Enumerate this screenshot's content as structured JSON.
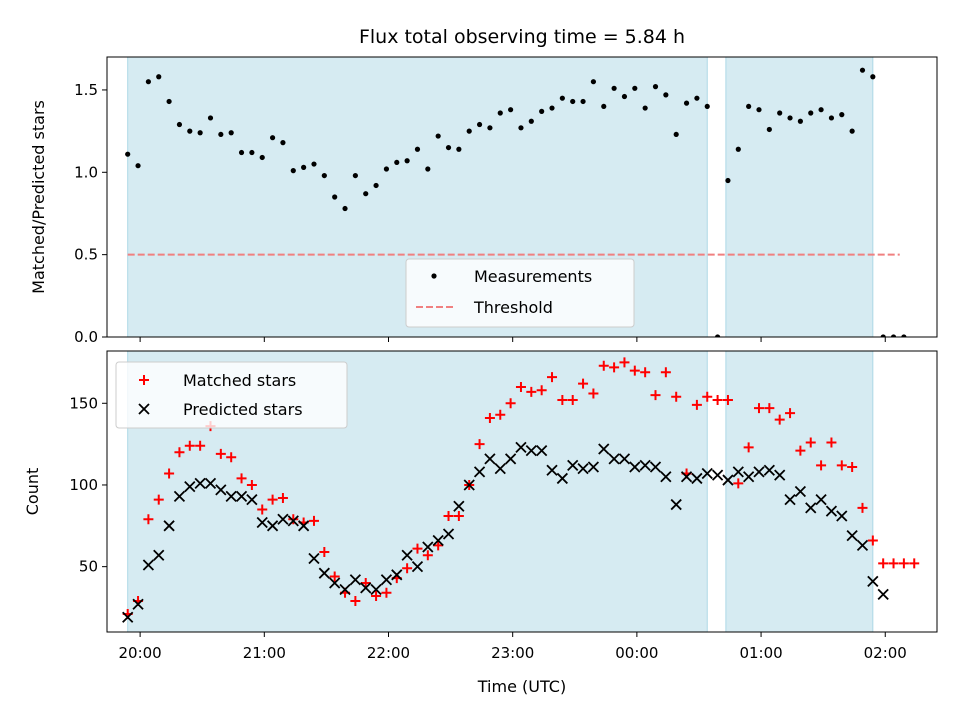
{
  "chart_data": [
    {
      "type": "scatter",
      "title": "Flux total observing time = 5.84 h",
      "ylabel": "Matched/Predicted stars",
      "xlabel": "",
      "ylim": [
        0,
        1.7
      ],
      "xlim": [
        "19:44",
        "02:25"
      ],
      "yticks": [
        "0.0",
        "0.5",
        "1.0",
        "1.5"
      ],
      "shaded_intervals": [
        [
          "19:54",
          "00:34"
        ],
        [
          "00:43",
          "01:54"
        ]
      ],
      "legend": {
        "placement": "lower-center",
        "entries": [
          "Measurements",
          "Threshold"
        ]
      },
      "threshold": {
        "name": "Threshold",
        "value": 0.5,
        "x_range": [
          "19:54",
          "02:07"
        ],
        "color": "#f08080"
      },
      "series": [
        {
          "name": "Measurements",
          "color": "#000000",
          "points": [
            [
              "19:54",
              1.11
            ],
            [
              "19:59",
              1.04
            ],
            [
              "20:04",
              1.55
            ],
            [
              "20:09",
              1.58
            ],
            [
              "20:14",
              1.43
            ],
            [
              "20:19",
              1.29
            ],
            [
              "20:24",
              1.25
            ],
            [
              "20:29",
              1.24
            ],
            [
              "20:34",
              1.33
            ],
            [
              "20:39",
              1.23
            ],
            [
              "20:44",
              1.24
            ],
            [
              "20:49",
              1.12
            ],
            [
              "20:54",
              1.12
            ],
            [
              "20:59",
              1.09
            ],
            [
              "21:04",
              1.21
            ],
            [
              "21:09",
              1.18
            ],
            [
              "21:14",
              1.01
            ],
            [
              "21:19",
              1.03
            ],
            [
              "21:24",
              1.05
            ],
            [
              "21:29",
              0.98
            ],
            [
              "21:34",
              0.85
            ],
            [
              "21:39",
              0.78
            ],
            [
              "21:44",
              0.98
            ],
            [
              "21:49",
              0.87
            ],
            [
              "21:54",
              0.92
            ],
            [
              "21:59",
              1.02
            ],
            [
              "22:04",
              1.06
            ],
            [
              "22:09",
              1.07
            ],
            [
              "22:14",
              1.14
            ],
            [
              "22:19",
              1.02
            ],
            [
              "22:24",
              1.22
            ],
            [
              "22:29",
              1.15
            ],
            [
              "22:34",
              1.14
            ],
            [
              "22:39",
              1.25
            ],
            [
              "22:44",
              1.29
            ],
            [
              "22:49",
              1.27
            ],
            [
              "22:54",
              1.36
            ],
            [
              "22:59",
              1.38
            ],
            [
              "23:04",
              1.27
            ],
            [
              "23:09",
              1.31
            ],
            [
              "23:14",
              1.37
            ],
            [
              "23:19",
              1.39
            ],
            [
              "23:24",
              1.45
            ],
            [
              "23:29",
              1.43
            ],
            [
              "23:34",
              1.43
            ],
            [
              "23:39",
              1.55
            ],
            [
              "23:44",
              1.4
            ],
            [
              "23:49",
              1.51
            ],
            [
              "23:54",
              1.46
            ],
            [
              "23:59",
              1.51
            ],
            [
              "00:04",
              1.39
            ],
            [
              "00:09",
              1.52
            ],
            [
              "00:14",
              1.47
            ],
            [
              "00:19",
              1.23
            ],
            [
              "00:24",
              1.42
            ],
            [
              "00:29",
              1.45
            ],
            [
              "00:34",
              1.4
            ],
            [
              "00:39",
              0.0
            ],
            [
              "00:44",
              0.95
            ],
            [
              "00:49",
              1.14
            ],
            [
              "00:54",
              1.4
            ],
            [
              "00:59",
              1.38
            ],
            [
              "01:04",
              1.26
            ],
            [
              "01:09",
              1.36
            ],
            [
              "01:14",
              1.33
            ],
            [
              "01:19",
              1.31
            ],
            [
              "01:24",
              1.36
            ],
            [
              "01:29",
              1.38
            ],
            [
              "01:34",
              1.33
            ],
            [
              "01:39",
              1.35
            ],
            [
              "01:44",
              1.25
            ],
            [
              "01:49",
              1.62
            ],
            [
              "01:54",
              1.58
            ],
            [
              "01:59",
              0.0
            ],
            [
              "02:04",
              0.0
            ],
            [
              "02:09",
              0.0
            ]
          ]
        }
      ]
    },
    {
      "type": "scatter",
      "title": "",
      "xlabel": "Time (UTC)",
      "ylabel": "Count",
      "ylim": [
        10,
        182
      ],
      "xlim": [
        "19:44",
        "02:25"
      ],
      "yticks": [
        "50",
        "100",
        "150"
      ],
      "xticks": [
        "20:00",
        "21:00",
        "22:00",
        "23:00",
        "00:00",
        "01:00",
        "02:00"
      ],
      "shaded_intervals": [
        [
          "19:54",
          "00:34"
        ],
        [
          "00:43",
          "01:54"
        ]
      ],
      "legend": {
        "placement": "upper-left",
        "entries": [
          "Matched stars",
          "Predicted stars"
        ]
      },
      "series": [
        {
          "name": "Matched stars",
          "marker": "+",
          "color": "#ff0000",
          "points": [
            [
              "19:54",
              21
            ],
            [
              "19:59",
              29
            ],
            [
              "20:04",
              79
            ],
            [
              "20:09",
              91
            ],
            [
              "20:14",
              107
            ],
            [
              "20:19",
              120
            ],
            [
              "20:24",
              124
            ],
            [
              "20:29",
              124
            ],
            [
              "20:34",
              136
            ],
            [
              "20:39",
              119
            ],
            [
              "20:44",
              117
            ],
            [
              "20:49",
              104
            ],
            [
              "20:54",
              100
            ],
            [
              "20:59",
              85
            ],
            [
              "21:04",
              91
            ],
            [
              "21:09",
              92
            ],
            [
              "21:14",
              79
            ],
            [
              "21:19",
              77
            ],
            [
              "21:24",
              78
            ],
            [
              "21:29",
              59
            ],
            [
              "21:34",
              44
            ],
            [
              "21:39",
              34
            ],
            [
              "21:44",
              29
            ],
            [
              "21:49",
              40
            ],
            [
              "21:54",
              32
            ],
            [
              "21:59",
              34
            ],
            [
              "22:04",
              43
            ],
            [
              "22:09",
              49
            ],
            [
              "22:14",
              61
            ],
            [
              "22:19",
              57
            ],
            [
              "22:24",
              63
            ],
            [
              "22:29",
              81
            ],
            [
              "22:34",
              81
            ],
            [
              "22:39",
              100
            ],
            [
              "22:44",
              125
            ],
            [
              "22:49",
              141
            ],
            [
              "22:54",
              143
            ],
            [
              "22:59",
              150
            ],
            [
              "23:04",
              160
            ],
            [
              "23:09",
              157
            ],
            [
              "23:14",
              158
            ],
            [
              "23:19",
              166
            ],
            [
              "23:24",
              152
            ],
            [
              "23:29",
              152
            ],
            [
              "23:34",
              162
            ],
            [
              "23:39",
              156
            ],
            [
              "23:44",
              173
            ],
            [
              "23:49",
              172
            ],
            [
              "23:54",
              175
            ],
            [
              "23:59",
              170
            ],
            [
              "00:04",
              169
            ],
            [
              "00:09",
              155
            ],
            [
              "00:14",
              169
            ],
            [
              "00:19",
              154
            ],
            [
              "00:24",
              107
            ],
            [
              "00:29",
              149
            ],
            [
              "00:34",
              154
            ],
            [
              "00:39",
              152
            ],
            [
              "00:44",
              152
            ],
            [
              "00:49",
              101
            ],
            [
              "00:54",
              123
            ],
            [
              "00:59",
              147
            ],
            [
              "01:04",
              147
            ],
            [
              "01:09",
              140
            ],
            [
              "01:14",
              144
            ],
            [
              "01:19",
              121
            ],
            [
              "01:24",
              126
            ],
            [
              "01:29",
              112
            ],
            [
              "01:34",
              126
            ],
            [
              "01:39",
              112
            ],
            [
              "01:44",
              111
            ],
            [
              "01:49",
              86
            ],
            [
              "01:54",
              66
            ],
            [
              "01:59",
              52
            ],
            [
              "02:04",
              52
            ],
            [
              "02:09",
              52
            ],
            [
              "02:14",
              52
            ]
          ]
        },
        {
          "name": "Predicted stars",
          "marker": "x",
          "color": "#000000",
          "points": [
            [
              "19:54",
              19
            ],
            [
              "19:59",
              27
            ],
            [
              "20:04",
              51
            ],
            [
              "20:09",
              57
            ],
            [
              "20:14",
              75
            ],
            [
              "20:19",
              93
            ],
            [
              "20:24",
              99
            ],
            [
              "20:29",
              101
            ],
            [
              "20:34",
              101
            ],
            [
              "20:39",
              97
            ],
            [
              "20:44",
              93
            ],
            [
              "20:49",
              93
            ],
            [
              "20:54",
              91
            ],
            [
              "20:59",
              77
            ],
            [
              "21:04",
              75
            ],
            [
              "21:09",
              79
            ],
            [
              "21:14",
              78
            ],
            [
              "21:19",
              75
            ],
            [
              "21:24",
              55
            ],
            [
              "21:29",
              46
            ],
            [
              "21:34",
              40
            ],
            [
              "21:39",
              36
            ],
            [
              "21:44",
              42
            ],
            [
              "21:49",
              37
            ],
            [
              "21:54",
              36
            ],
            [
              "21:59",
              42
            ],
            [
              "22:04",
              45
            ],
            [
              "22:09",
              57
            ],
            [
              "22:14",
              50
            ],
            [
              "22:19",
              62
            ],
            [
              "22:24",
              66
            ],
            [
              "22:29",
              70
            ],
            [
              "22:34",
              87
            ],
            [
              "22:39",
              100
            ],
            [
              "22:44",
              108
            ],
            [
              "22:49",
              116
            ],
            [
              "22:54",
              110
            ],
            [
              "22:59",
              116
            ],
            [
              "23:04",
              123
            ],
            [
              "23:09",
              121
            ],
            [
              "23:14",
              121
            ],
            [
              "23:19",
              109
            ],
            [
              "23:24",
              104
            ],
            [
              "23:29",
              112
            ],
            [
              "23:34",
              110
            ],
            [
              "23:39",
              111
            ],
            [
              "23:44",
              122
            ],
            [
              "23:49",
              116
            ],
            [
              "23:54",
              116
            ],
            [
              "23:59",
              111
            ],
            [
              "00:04",
              112
            ],
            [
              "00:09",
              111
            ],
            [
              "00:14",
              105
            ],
            [
              "00:19",
              88
            ],
            [
              "00:24",
              105
            ],
            [
              "00:29",
              104
            ],
            [
              "00:34",
              107
            ],
            [
              "00:39",
              106
            ],
            [
              "00:44",
              103
            ],
            [
              "00:49",
              108
            ],
            [
              "00:54",
              105
            ],
            [
              "00:59",
              108
            ],
            [
              "01:04",
              109
            ],
            [
              "01:09",
              106
            ],
            [
              "01:14",
              91
            ],
            [
              "01:19",
              96
            ],
            [
              "01:24",
              86
            ],
            [
              "01:29",
              91
            ],
            [
              "01:34",
              84
            ],
            [
              "01:39",
              81
            ],
            [
              "01:44",
              69
            ],
            [
              "01:49",
              63
            ],
            [
              "01:54",
              41
            ],
            [
              "01:59",
              33
            ]
          ]
        }
      ]
    }
  ]
}
